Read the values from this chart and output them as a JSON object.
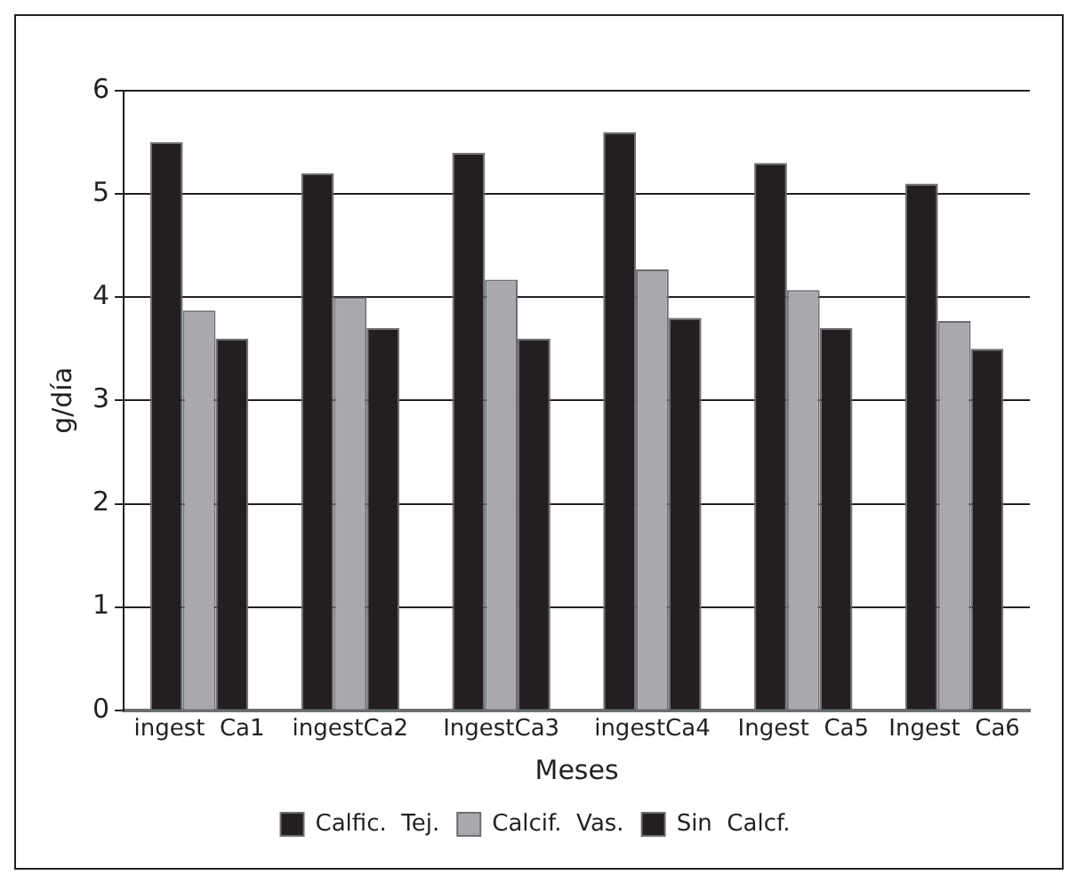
{
  "chart_data": {
    "type": "bar",
    "xlabel": "Meses",
    "ylabel": "g/día",
    "categories": [
      "ingest  Ca1",
      "ingestCa2",
      "IngestCa3",
      "ingestCa4",
      "Ingest  Ca5",
      "Ingest  Ca6"
    ],
    "series": [
      {
        "name": "Calfic.  Tej.",
        "color": "#231f20",
        "values": [
          5.5,
          5.2,
          5.4,
          5.6,
          5.3,
          5.1
        ]
      },
      {
        "name": "Calcif.  Vas.",
        "color": "#a7a9ac",
        "values": [
          3.87,
          4.0,
          4.17,
          4.27,
          4.07,
          3.77
        ]
      },
      {
        "name": "Sin  Calcf.",
        "color": "#231f20",
        "values": [
          3.6,
          3.7,
          3.6,
          3.8,
          3.7,
          3.5
        ]
      }
    ],
    "ylim": [
      0,
      6
    ],
    "yticks": [
      0,
      1,
      2,
      3,
      4,
      5,
      6
    ],
    "grid": "y",
    "legend": "bottom"
  }
}
